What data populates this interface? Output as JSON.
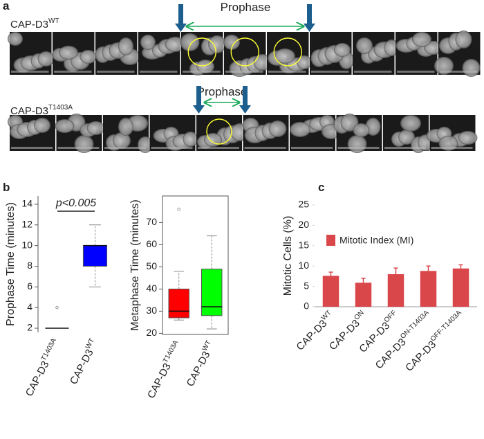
{
  "panel_a": {
    "letter": "a",
    "rows": [
      {
        "label": "CAP-D3",
        "sup": "WT",
        "phase": "Prophase"
      },
      {
        "label": "CAP-D3",
        "sup": "T1403A",
        "phase": "Prophase"
      }
    ]
  },
  "panel_b": {
    "letter": "b"
  },
  "panel_c": {
    "letter": "c"
  },
  "chart_data": [
    {
      "type": "box",
      "ylabel": "Prophase Time (minutes)",
      "categories": [
        "CAP-D3",
        "CAP-D3"
      ],
      "category_superscripts": [
        "T1403A",
        "WT"
      ],
      "boxes": [
        {
          "min": 2,
          "q1": 2,
          "median": 2,
          "q3": 2,
          "max": 2,
          "outliers": [
            4
          ],
          "color": "#ff0000"
        },
        {
          "min": 6,
          "q1": 8,
          "median": 10,
          "q3": 10,
          "max": 12,
          "outliers": [],
          "color": "#0000ff"
        }
      ],
      "ylim": [
        1.6,
        14.8
      ],
      "yticks": [
        2,
        4,
        6,
        8,
        10,
        12,
        14
      ],
      "annotation": "p<0.005",
      "frame": false
    },
    {
      "type": "box",
      "ylabel": "Metaphase Time (minutes)",
      "categories": [
        "CAP-D3",
        "CAP-D3"
      ],
      "category_superscripts": [
        "T1403A",
        "WT"
      ],
      "boxes": [
        {
          "min": 26,
          "q1": 27,
          "median": 30,
          "q3": 40,
          "max": 48,
          "outliers": [
            76
          ],
          "color": "#ff0000"
        },
        {
          "min": 22,
          "q1": 28,
          "median": 32,
          "q3": 49,
          "max": 64,
          "outliers": [],
          "color": "#00ff00"
        }
      ],
      "ylim": [
        19.5,
        82
      ],
      "yticks": [
        20,
        30,
        40,
        50,
        60,
        70
      ],
      "frame": true
    },
    {
      "type": "bar",
      "ylabel": "Mitotic Cells (%)",
      "categories": [
        "CAP-D3",
        "CAP-D3",
        "CAP-D3",
        "CAP-D3",
        "CAP-D3"
      ],
      "category_superscripts": [
        "WT",
        "ON",
        "OFF",
        "ON-T1403A",
        "OFF-T1403A"
      ],
      "series": [
        {
          "name": "Mitotic Index (MI)",
          "color": "#d9474b",
          "values": [
            7.6,
            5.9,
            8.0,
            8.8,
            9.4
          ],
          "errors": [
            0.9,
            1.1,
            1.5,
            1.2,
            0.9
          ]
        }
      ],
      "ylim": [
        0,
        25
      ],
      "yticks": [
        0,
        5,
        10,
        15,
        20,
        25
      ]
    }
  ]
}
